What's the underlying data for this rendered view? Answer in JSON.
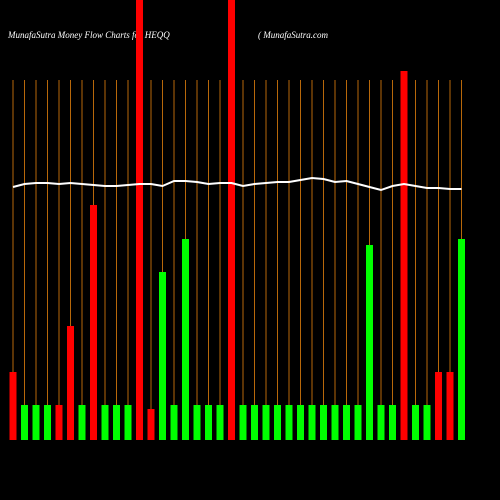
{
  "chart_data": {
    "type": "bar",
    "title": "MunafaSutra  Money Flow  Charts for HEQQ",
    "subtitle": "( MunafaSutra.com",
    "categories": [
      null,
      null,
      null,
      null,
      null,
      null,
      null,
      null,
      null,
      null,
      null,
      null,
      null,
      null,
      null,
      null,
      null,
      null,
      null,
      null,
      null,
      null,
      null,
      null,
      null,
      null,
      null,
      null,
      null,
      null,
      null,
      null,
      null,
      null,
      null,
      null,
      null,
      null,
      null,
      null
    ],
    "values": [
      68,
      35,
      35,
      35,
      35,
      114,
      35,
      235,
      35,
      35,
      35,
      440,
      31,
      168,
      35,
      201,
      35,
      35,
      35,
      440,
      35,
      35,
      35,
      35,
      35,
      35,
      35,
      35,
      35,
      35,
      35,
      195,
      35,
      35,
      369,
      35,
      35,
      68,
      68,
      201
    ],
    "bar_colors": [
      "#ff0000",
      "#00ff00",
      "#00ff00",
      "#00ff00",
      "#ff0000",
      "#ff0000",
      "#00ff00",
      "#ff0000",
      "#00ff00",
      "#00ff00",
      "#00ff00",
      "#ff0000",
      "#ff0000",
      "#00ff00",
      "#00ff00",
      "#00ff00",
      "#00ff00",
      "#00ff00",
      "#00ff00",
      "#ff0000",
      "#00ff00",
      "#00ff00",
      "#00ff00",
      "#00ff00",
      "#00ff00",
      "#00ff00",
      "#00ff00",
      "#00ff00",
      "#00ff00",
      "#00ff00",
      "#00ff00",
      "#00ff00",
      "#00ff00",
      "#00ff00",
      "#ff0000",
      "#00ff00",
      "#00ff00",
      "#ff0000",
      "#ff0000",
      "#00ff00"
    ],
    "line": {
      "color": "#ffffff",
      "values": [
        253,
        256,
        257,
        257,
        256,
        257,
        256,
        255,
        254,
        254,
        255,
        256,
        256,
        254,
        259,
        259,
        258,
        256,
        257,
        257,
        254,
        256,
        257,
        258,
        258,
        260,
        262,
        261,
        258,
        259,
        256,
        253,
        250,
        254,
        256,
        254,
        252,
        252,
        251,
        251
      ]
    },
    "grid_color": "#b8680a",
    "ylim": [
      0,
      440
    ]
  }
}
